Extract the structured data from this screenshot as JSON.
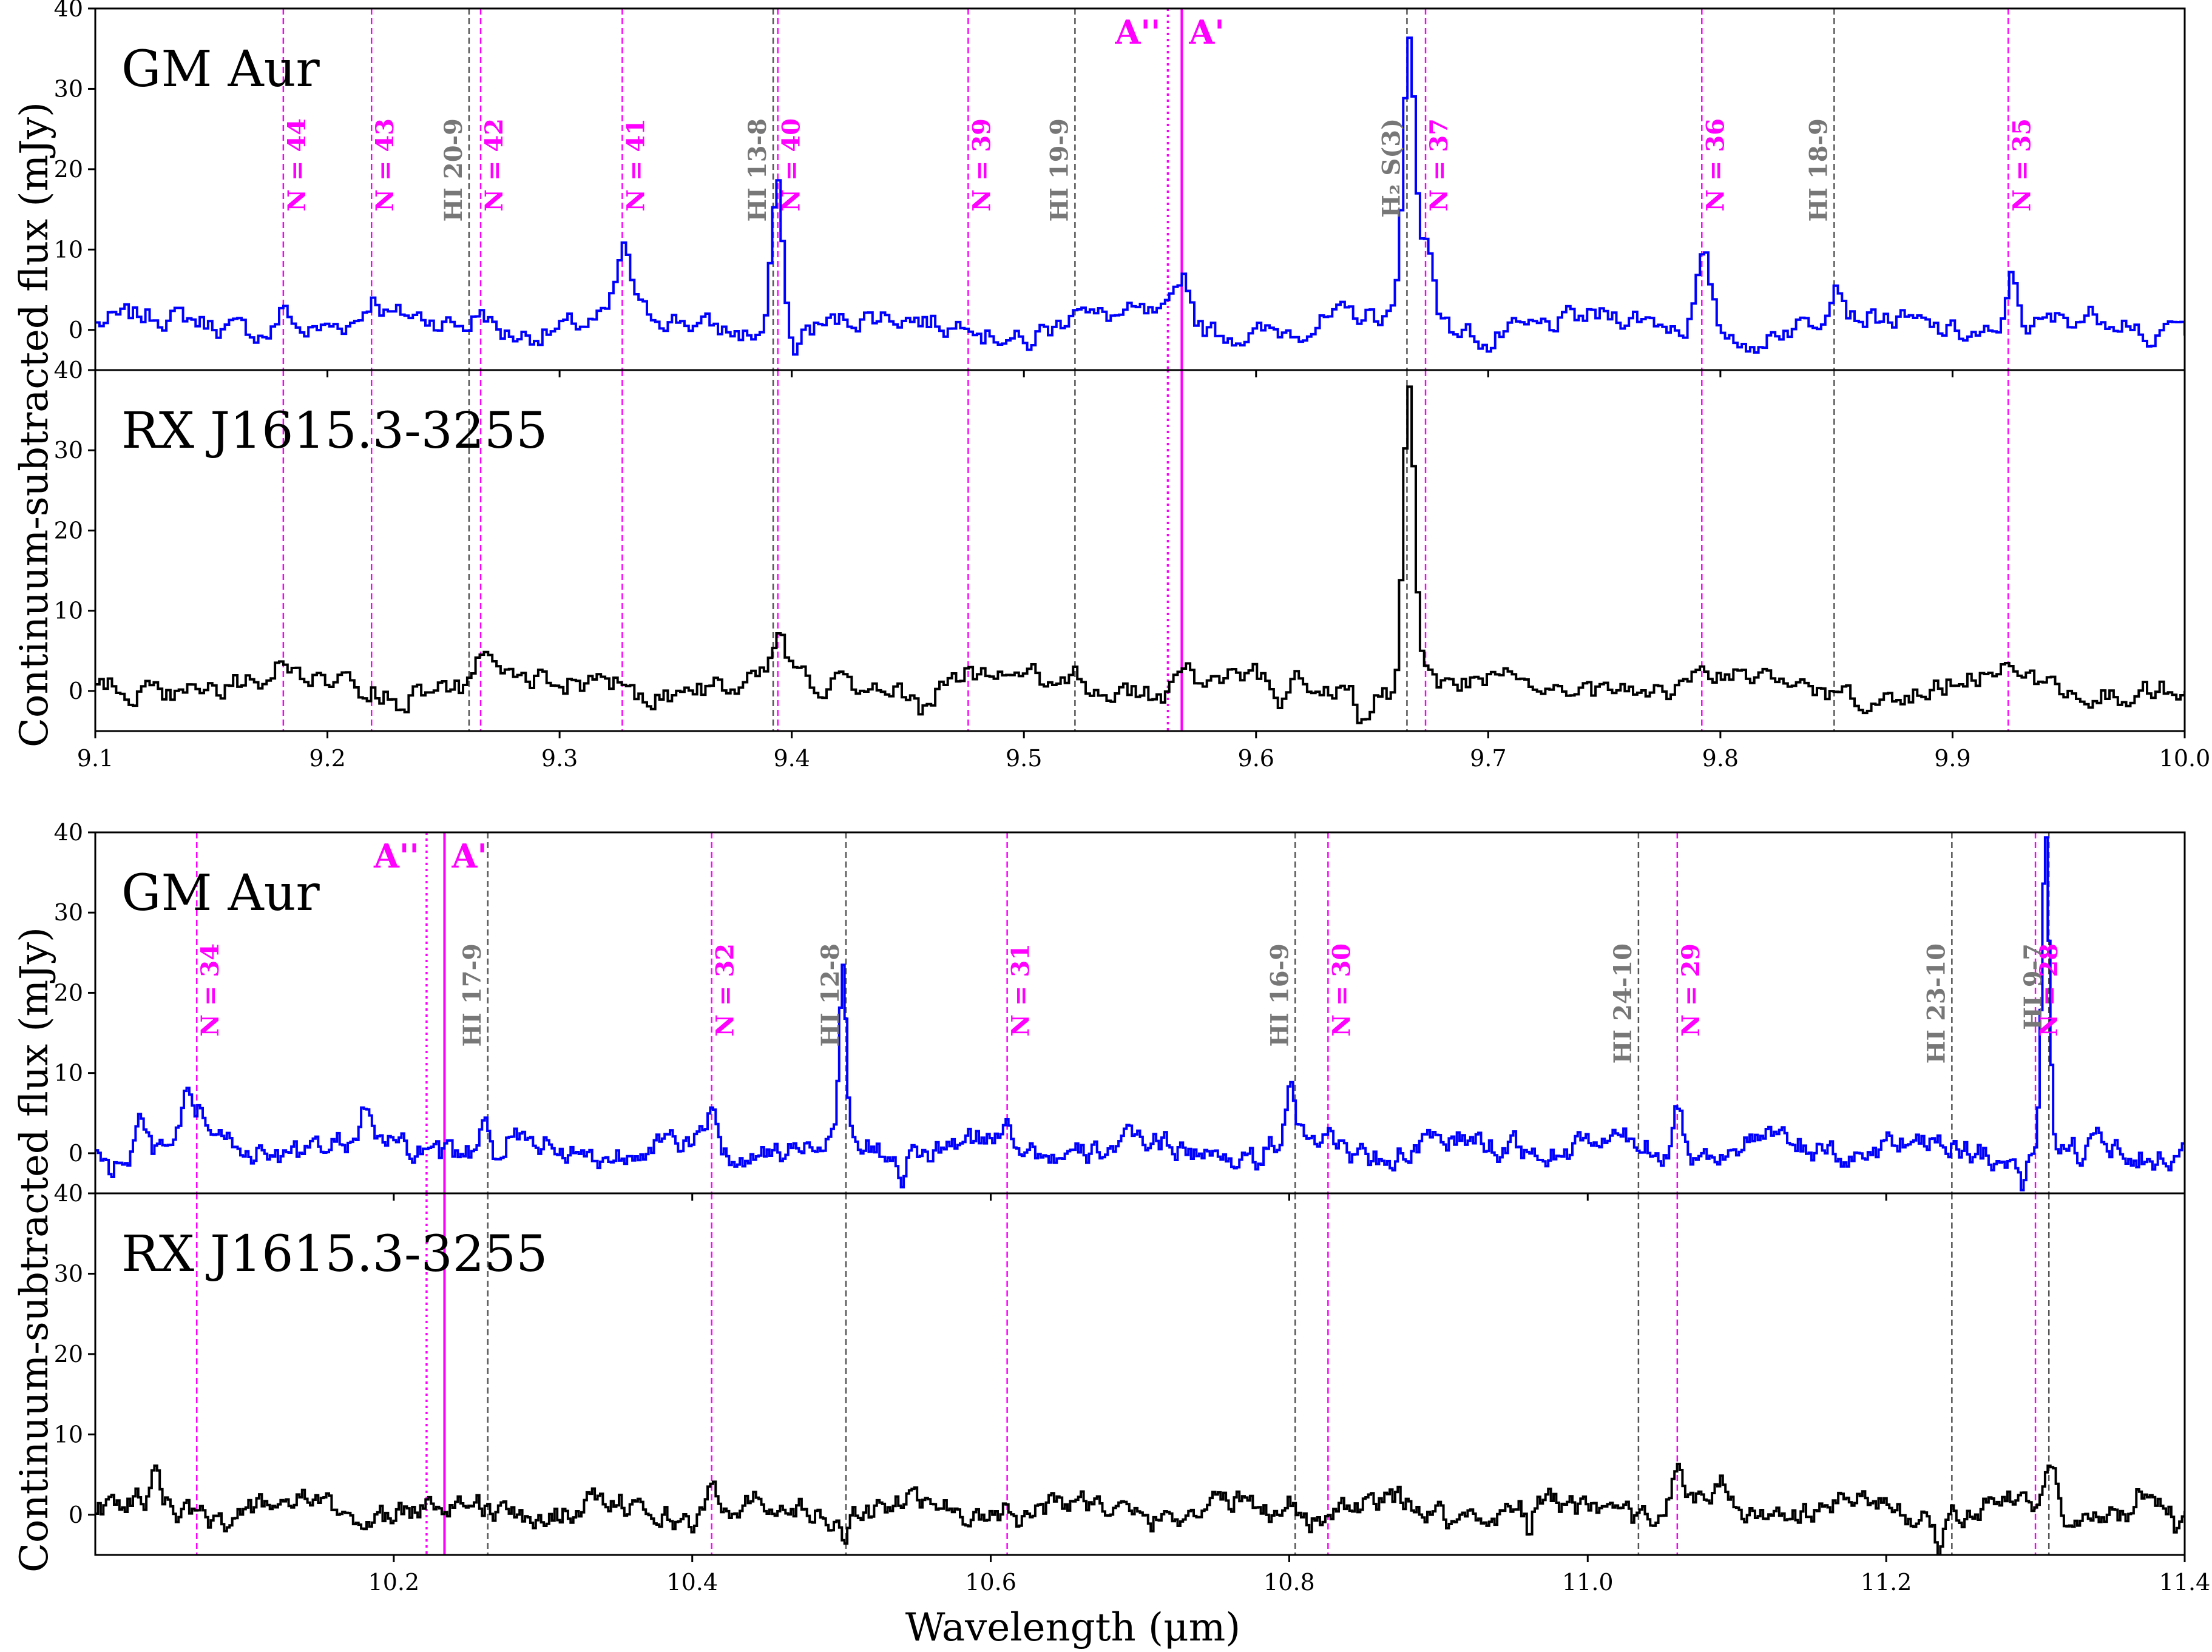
{
  "figure": {
    "ylabel": "Continuum-subtracted flux (mJy)",
    "xlabel": "Wavelength (μm)"
  },
  "chart_data": [
    {
      "type": "line",
      "xlim": [
        9.1,
        10.0
      ],
      "ylim": [
        -5,
        40
      ],
      "xticks": [
        "9.1",
        "9.2",
        "9.3",
        "9.4",
        "9.5",
        "9.6",
        "9.7",
        "9.8",
        "9.9",
        "10.0"
      ],
      "yticks": [
        "0",
        "10",
        "20",
        "30",
        "40"
      ],
      "pseudo_continuum": {
        "A_double_prime": 9.562,
        "A_prime": 9.568,
        "labels": [
          "A''",
          "A'"
        ]
      },
      "water_lines": [
        {
          "x": 9.181,
          "label": "N = 44"
        },
        {
          "x": 9.219,
          "label": "N = 43"
        },
        {
          "x": 9.266,
          "label": "N = 42"
        },
        {
          "x": 9.327,
          "label": "N = 41"
        },
        {
          "x": 9.394,
          "label": "N = 40"
        },
        {
          "x": 9.476,
          "label": "N = 39"
        },
        {
          "x": 9.673,
          "label": "N = 37"
        },
        {
          "x": 9.792,
          "label": "N = 36"
        },
        {
          "x": 9.924,
          "label": "N = 35"
        }
      ],
      "hi_lines": [
        {
          "x": 9.261,
          "label": "HI 20-9"
        },
        {
          "x": 9.392,
          "label": "HI 13-8"
        },
        {
          "x": 9.522,
          "label": "HI 19-9"
        },
        {
          "x": 9.665,
          "label": "H₂ S(3)"
        },
        {
          "x": 9.849,
          "label": "HI 18-9"
        }
      ],
      "series": [
        {
          "name": "GM Aur",
          "color": "#0000ff",
          "peaks": [
            [
              9.181,
              4
            ],
            [
              9.219,
              3.5
            ],
            [
              9.266,
              3.5
            ],
            [
              9.327,
              9
            ],
            [
              9.393,
              19
            ],
            [
              9.476,
              3
            ],
            [
              9.522,
              4
            ],
            [
              9.568,
              7
            ],
            [
              9.665,
              40
            ],
            [
              9.673,
              11
            ],
            [
              9.792,
              9.5
            ],
            [
              9.849,
              6
            ],
            [
              9.924,
              8.5
            ]
          ],
          "dips": [
            [
              9.4,
              -2
            ],
            [
              9.5,
              -1.5
            ],
            [
              9.664,
              -3
            ],
            [
              9.7,
              -1
            ],
            [
              9.815,
              -2.5
            ],
            [
              9.92,
              -3
            ],
            [
              9.985,
              -4
            ]
          ]
        },
        {
          "name": "RX J1615.3-3255",
          "color": "#000000",
          "peaks": [
            [
              9.181,
              3
            ],
            [
              9.266,
              4
            ],
            [
              9.327,
              3
            ],
            [
              9.394,
              5
            ],
            [
              9.476,
              2.5
            ],
            [
              9.522,
              2
            ],
            [
              9.568,
              4.5
            ],
            [
              9.665,
              39
            ],
            [
              9.673,
              5
            ],
            [
              9.792,
              3
            ],
            [
              9.924,
              3.5
            ]
          ],
          "dips": [
            [
              9.23,
              -2
            ],
            [
              9.455,
              -1.5
            ],
            [
              9.61,
              -2
            ],
            [
              9.645,
              -3
            ],
            [
              9.72,
              -1.5
            ]
          ]
        }
      ]
    },
    {
      "type": "line",
      "xlim": [
        10.0,
        11.4
      ],
      "ylim": [
        -5,
        40
      ],
      "xticks": [
        "10.2",
        "10.4",
        "10.6",
        "10.8",
        "11.0",
        "11.2",
        "11.4"
      ],
      "yticks": [
        "0",
        "10",
        "20",
        "30",
        "40"
      ],
      "pseudo_continuum": {
        "A_double_prime": 10.222,
        "A_prime": 10.234,
        "labels": [
          "A''",
          "A'"
        ]
      },
      "water_lines": [
        {
          "x": 10.068,
          "label": "N = 34"
        },
        {
          "x": 10.413,
          "label": "N = 32"
        },
        {
          "x": 10.611,
          "label": "N = 31"
        },
        {
          "x": 10.826,
          "label": "N = 30"
        },
        {
          "x": 11.06,
          "label": "N = 29"
        },
        {
          "x": 11.3,
          "label": "N = 28"
        }
      ],
      "hi_lines": [
        {
          "x": 10.263,
          "label": "HI 17-9"
        },
        {
          "x": 10.503,
          "label": "HI 12-8"
        },
        {
          "x": 10.804,
          "label": "HI 16-9"
        },
        {
          "x": 11.034,
          "label": "HI 24-10"
        },
        {
          "x": 11.244,
          "label": "HI 23-10"
        },
        {
          "x": 11.309,
          "label": "HI 9-7"
        }
      ],
      "series": [
        {
          "name": "GM Aur",
          "color": "#0000ff",
          "peaks": [
            [
              10.03,
              6
            ],
            [
              10.06,
              6
            ],
            [
              10.07,
              5
            ],
            [
              10.13,
              3
            ],
            [
              10.18,
              4.5
            ],
            [
              10.26,
              5.5
            ],
            [
              10.413,
              6.5
            ],
            [
              10.5,
              22.5
            ],
            [
              10.61,
              4.5
            ],
            [
              10.8,
              7
            ],
            [
              10.826,
              4
            ],
            [
              10.95,
              3
            ],
            [
              11.06,
              7.5
            ],
            [
              11.2,
              3
            ],
            [
              11.306,
              40
            ]
          ],
          "dips": [
            [
              10.01,
              -2.5
            ],
            [
              10.27,
              -2
            ],
            [
              10.39,
              -2
            ],
            [
              10.54,
              -3.5
            ],
            [
              10.78,
              -2
            ],
            [
              11.29,
              -3.5
            ],
            [
              11.33,
              -2
            ]
          ]
        },
        {
          "name": "RX J1615.3-3255",
          "color": "#000000",
          "peaks": [
            [
              10.04,
              4.5
            ],
            [
              10.413,
              4
            ],
            [
              10.61,
              3.5
            ],
            [
              10.8,
              3
            ],
            [
              11.06,
              6.5
            ],
            [
              11.09,
              4
            ],
            [
              11.31,
              6
            ],
            [
              11.37,
              3
            ]
          ],
          "dips": [
            [
              10.5,
              -2
            ],
            [
              10.96,
              -3
            ],
            [
              11.235,
              -3
            ],
            [
              11.395,
              -3
            ]
          ]
        }
      ]
    }
  ]
}
